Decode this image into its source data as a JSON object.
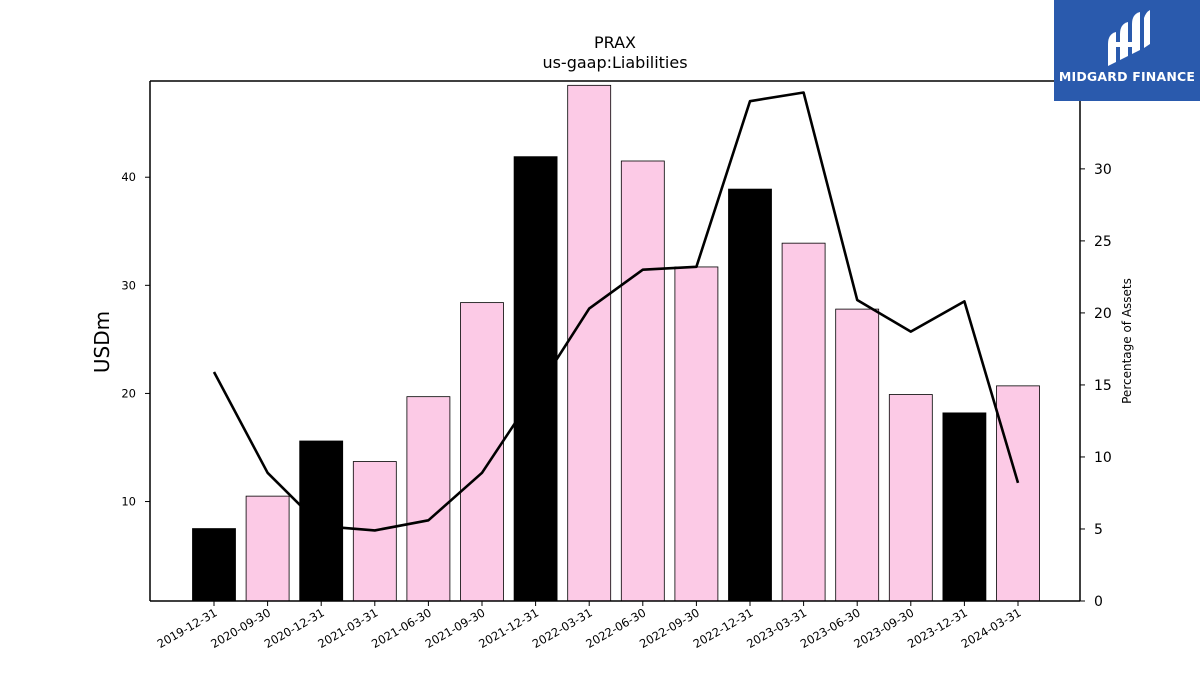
{
  "chart_data": {
    "type": "bar",
    "title": "PRAX",
    "subtitle": "us-gaap:Liabilities",
    "ylabel": "USDm",
    "y2label": "Percentage of Assets",
    "categories": [
      "2019-12-31",
      "2020-09-30",
      "2020-12-31",
      "2021-03-31",
      "2021-06-30",
      "2021-09-30",
      "2021-12-31",
      "2022-03-31",
      "2022-06-30",
      "2022-09-30",
      "2022-12-31",
      "2023-03-31",
      "2023-06-30",
      "2023-09-30",
      "2023-12-31",
      "2024-03-31"
    ],
    "series": [
      {
        "kind": "bar",
        "axis": "left",
        "values": [
          7.5,
          10.5,
          15.6,
          13.7,
          19.7,
          28.4,
          41.9,
          48.5,
          41.5,
          31.7,
          38.9,
          33.9,
          27.8,
          19.9,
          18.2,
          20.7
        ],
        "colors": [
          "#000000",
          "#fccae6",
          "#000000",
          "#fccae6",
          "#fccae6",
          "#fccae6",
          "#000000",
          "#fccae6",
          "#fccae6",
          "#fccae6",
          "#000000",
          "#fccae6",
          "#fccae6",
          "#fccae6",
          "#000000",
          "#fccae6"
        ]
      },
      {
        "kind": "line",
        "axis": "right",
        "values": [
          15.9,
          8.9,
          5.2,
          4.9,
          5.6,
          8.9,
          14.5,
          20.3,
          23.0,
          23.2,
          34.7,
          35.3,
          20.9,
          18.7,
          20.8,
          8.2
        ],
        "color": "#000000"
      }
    ],
    "ylim": [
      0.8,
      48.9
    ],
    "y2lim": [
      0,
      36.1
    ],
    "yticks": [
      10,
      20,
      30,
      40
    ],
    "y2ticks": [
      0,
      5,
      10,
      15,
      20,
      25,
      30
    ],
    "grid": false
  },
  "logo": {
    "text": "MIDGARD FINANCE",
    "color": "#2a5aad"
  }
}
